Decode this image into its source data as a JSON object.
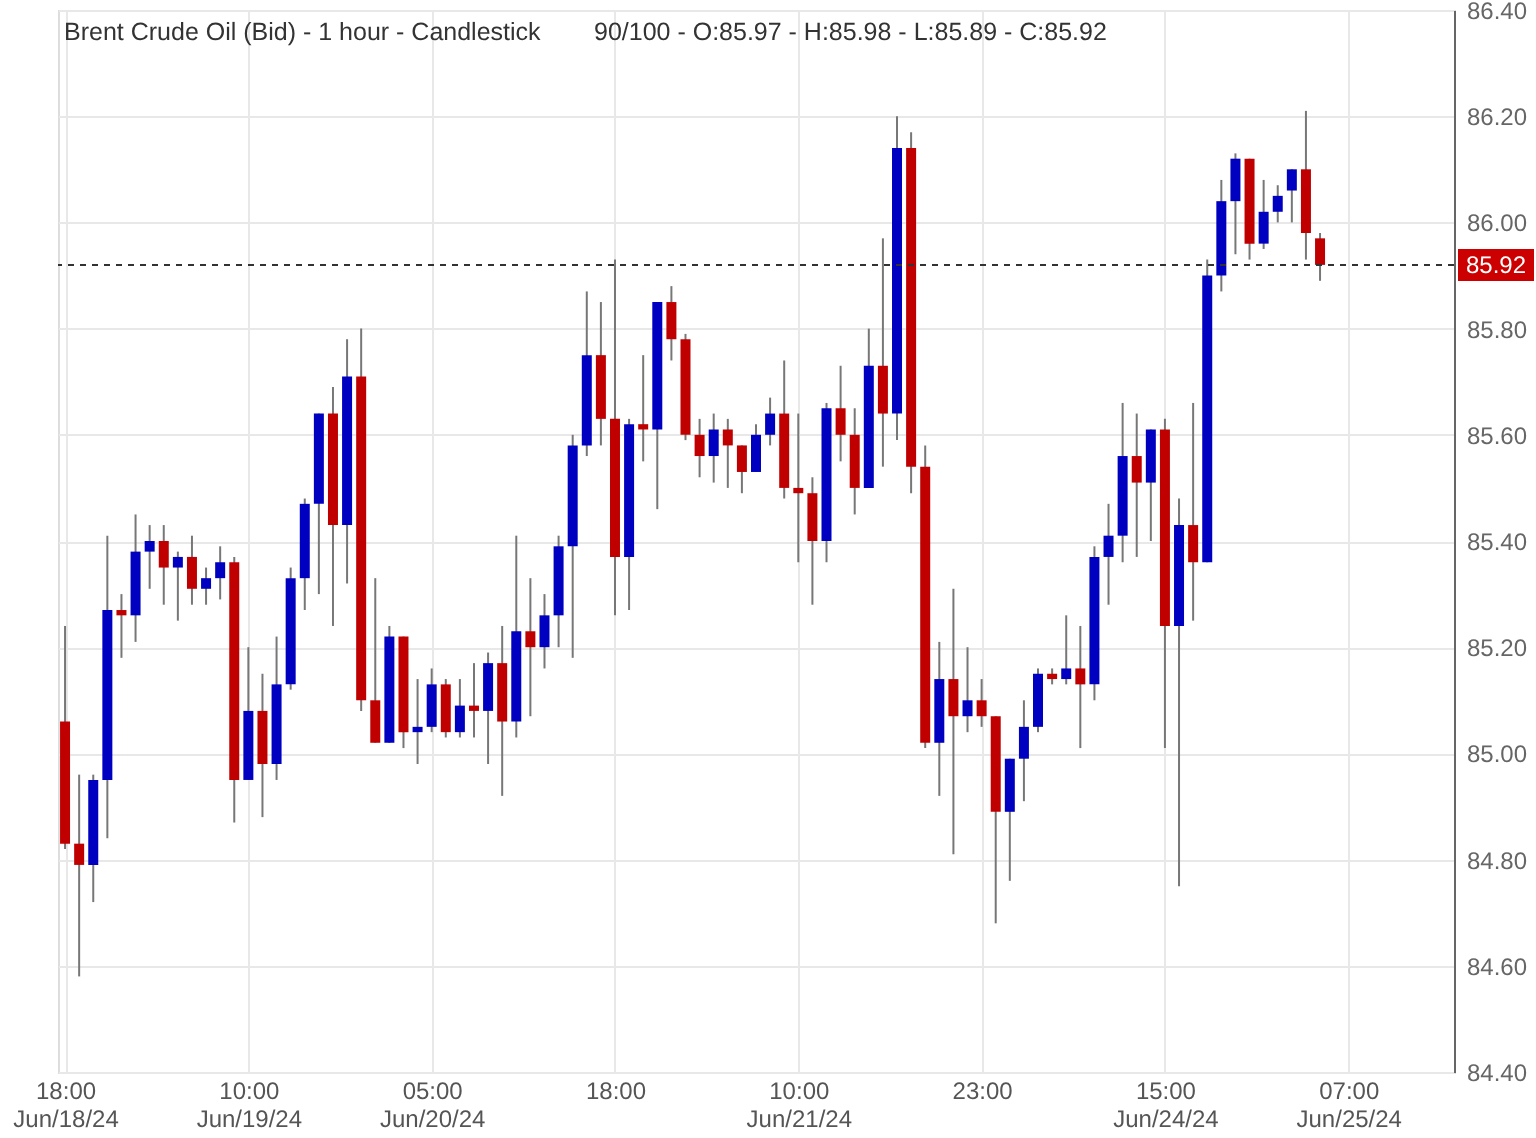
{
  "chart_data": {
    "type": "candlestick",
    "title": "Brent Crude Oil (Bid) - 1 hour - Candlestick",
    "subtitle": "90/100 - O:85.97 - H:85.98 - L:85.89 - C:85.92",
    "categories": [
      "18:00\nJun/18/24",
      null,
      null,
      null,
      null,
      null,
      null,
      null,
      null,
      null,
      null,
      null,
      null,
      "10:00\nJun/19/24",
      null,
      null,
      null,
      null,
      null,
      null,
      null,
      null,
      null,
      null,
      null,
      null,
      "05:00\nJun/20/24",
      null,
      null,
      null,
      null,
      null,
      null,
      null,
      null,
      null,
      null,
      null,
      null,
      "18:00",
      null,
      null,
      null,
      null,
      null,
      null,
      null,
      null,
      null,
      null,
      null,
      null,
      "10:00\nJun/21/24",
      null,
      null,
      null,
      null,
      null,
      null,
      null,
      null,
      null,
      null,
      null,
      null,
      "23:00",
      null,
      null,
      null,
      null,
      null,
      null,
      null,
      null,
      null,
      null,
      null,
      null,
      "15:00\nJun/24/24",
      null,
      null,
      null,
      null,
      null,
      null,
      null,
      null,
      null,
      null,
      null,
      null,
      "07:00\nJun/25/24",
      null,
      null,
      null,
      null,
      null,
      null,
      null
    ],
    "ohlc": [
      [
        85.06,
        85.24,
        84.82,
        84.83
      ],
      [
        84.83,
        84.96,
        84.58,
        84.79
      ],
      [
        84.79,
        84.96,
        84.72,
        84.95
      ],
      [
        84.95,
        85.41,
        84.84,
        85.27
      ],
      [
        85.27,
        85.3,
        85.18,
        85.26
      ],
      [
        85.26,
        85.45,
        85.21,
        85.38
      ],
      [
        85.38,
        85.43,
        85.31,
        85.4
      ],
      [
        85.4,
        85.43,
        85.28,
        85.35
      ],
      [
        85.35,
        85.38,
        85.25,
        85.37
      ],
      [
        85.37,
        85.41,
        85.28,
        85.31
      ],
      [
        85.31,
        85.35,
        85.28,
        85.33
      ],
      [
        85.33,
        85.39,
        85.29,
        85.36
      ],
      [
        85.36,
        85.37,
        84.87,
        84.95
      ],
      [
        84.95,
        85.2,
        84.95,
        85.08
      ],
      [
        85.08,
        85.15,
        84.88,
        84.98
      ],
      [
        84.98,
        85.22,
        84.95,
        85.13
      ],
      [
        85.13,
        85.35,
        85.12,
        85.33
      ],
      [
        85.33,
        85.48,
        85.27,
        85.47
      ],
      [
        85.47,
        85.64,
        85.3,
        85.64
      ],
      [
        85.64,
        85.69,
        85.24,
        85.43
      ],
      [
        85.43,
        85.78,
        85.32,
        85.71
      ],
      [
        85.71,
        85.8,
        85.08,
        85.1
      ],
      [
        85.1,
        85.33,
        85.02,
        85.02
      ],
      [
        85.02,
        85.24,
        85.02,
        85.22
      ],
      [
        85.22,
        85.22,
        85.01,
        85.04
      ],
      [
        85.04,
        85.14,
        84.98,
        85.05
      ],
      [
        85.05,
        85.16,
        85.04,
        85.13
      ],
      [
        85.13,
        85.14,
        85.03,
        85.04
      ],
      [
        85.04,
        85.14,
        85.03,
        85.09
      ],
      [
        85.09,
        85.17,
        85.03,
        85.08
      ],
      [
        85.08,
        85.19,
        84.98,
        85.17
      ],
      [
        85.17,
        85.24,
        84.92,
        85.06
      ],
      [
        85.06,
        85.41,
        85.03,
        85.23
      ],
      [
        85.23,
        85.33,
        85.07,
        85.2
      ],
      [
        85.2,
        85.3,
        85.16,
        85.26
      ],
      [
        85.26,
        85.41,
        85.2,
        85.39
      ],
      [
        85.39,
        85.6,
        85.18,
        85.58
      ],
      [
        85.58,
        85.87,
        85.56,
        85.75
      ],
      [
        85.75,
        85.85,
        85.58,
        85.63
      ],
      [
        85.63,
        85.93,
        85.26,
        85.37
      ],
      [
        85.37,
        85.63,
        85.27,
        85.62
      ],
      [
        85.62,
        85.75,
        85.55,
        85.61
      ],
      [
        85.61,
        85.85,
        85.46,
        85.85
      ],
      [
        85.85,
        85.88,
        85.74,
        85.78
      ],
      [
        85.78,
        85.79,
        85.59,
        85.6
      ],
      [
        85.6,
        85.63,
        85.52,
        85.56
      ],
      [
        85.56,
        85.64,
        85.51,
        85.61
      ],
      [
        85.61,
        85.63,
        85.5,
        85.58
      ],
      [
        85.58,
        85.58,
        85.49,
        85.53
      ],
      [
        85.53,
        85.62,
        85.53,
        85.6
      ],
      [
        85.6,
        85.67,
        85.58,
        85.64
      ],
      [
        85.64,
        85.74,
        85.48,
        85.5
      ],
      [
        85.5,
        85.64,
        85.36,
        85.49
      ],
      [
        85.49,
        85.52,
        85.28,
        85.4
      ],
      [
        85.4,
        85.66,
        85.36,
        85.65
      ],
      [
        85.65,
        85.73,
        85.55,
        85.6
      ],
      [
        85.6,
        85.65,
        85.45,
        85.5
      ],
      [
        85.5,
        85.8,
        85.5,
        85.73
      ],
      [
        85.73,
        85.97,
        85.54,
        85.64
      ],
      [
        85.64,
        86.2,
        85.59,
        86.14
      ],
      [
        86.14,
        86.17,
        85.49,
        85.54
      ],
      [
        85.54,
        85.58,
        85.01,
        85.02
      ],
      [
        85.02,
        85.21,
        84.92,
        85.14
      ],
      [
        85.14,
        85.31,
        84.81,
        85.07
      ],
      [
        85.07,
        85.2,
        85.04,
        85.1
      ],
      [
        85.1,
        85.14,
        85.05,
        85.07
      ],
      [
        85.07,
        85.07,
        84.68,
        84.89
      ],
      [
        84.89,
        84.99,
        84.76,
        84.99
      ],
      [
        84.99,
        85.1,
        84.91,
        85.05
      ],
      [
        85.05,
        85.16,
        85.04,
        85.15
      ],
      [
        85.15,
        85.16,
        85.13,
        85.14
      ],
      [
        85.14,
        85.26,
        85.13,
        85.16
      ],
      [
        85.16,
        85.24,
        85.01,
        85.13
      ],
      [
        85.13,
        85.39,
        85.1,
        85.37
      ],
      [
        85.37,
        85.47,
        85.28,
        85.41
      ],
      [
        85.41,
        85.66,
        85.36,
        85.56
      ],
      [
        85.56,
        85.64,
        85.37,
        85.51
      ],
      [
        85.51,
        85.61,
        85.4,
        85.61
      ],
      [
        85.61,
        85.63,
        85.01,
        85.24
      ],
      [
        85.24,
        85.48,
        84.75,
        85.43
      ],
      [
        85.43,
        85.66,
        85.25,
        85.36
      ],
      [
        85.36,
        85.93,
        85.36,
        85.9
      ],
      [
        85.9,
        86.08,
        85.87,
        86.04
      ],
      [
        86.04,
        86.13,
        85.94,
        86.12
      ],
      [
        86.12,
        86.12,
        85.93,
        85.96
      ],
      [
        85.96,
        86.08,
        85.95,
        86.02
      ],
      [
        86.02,
        86.07,
        86.0,
        86.05
      ],
      [
        86.06,
        86.1,
        86.0,
        86.1
      ],
      [
        86.1,
        86.21,
        85.93,
        85.98
      ],
      [
        85.97,
        85.98,
        85.89,
        85.92
      ],
      null,
      null,
      null,
      null,
      null,
      null,
      null,
      null,
      null
    ],
    "colors": [
      "#c00000",
      "#c00000",
      "#0000c0",
      "#0000c0",
      "#c00000",
      "#0000c0",
      "#0000c0",
      "#c00000",
      "#0000c0",
      "#c00000",
      "#0000c0",
      "#0000c0",
      "#c00000",
      "#0000c0",
      "#c00000",
      "#0000c0",
      "#0000c0",
      "#0000c0",
      "#0000c0",
      "#c00000",
      "#0000c0",
      "#c00000",
      "#c00000",
      "#0000c0",
      "#c00000",
      "#0000c0",
      "#0000c0",
      "#c00000",
      "#0000c0",
      "#c00000",
      "#0000c0",
      "#c00000",
      "#0000c0",
      "#c00000",
      "#0000c0",
      "#0000c0",
      "#0000c0",
      "#0000c0",
      "#c00000",
      "#c00000",
      "#0000c0",
      "#c00000",
      "#0000c0",
      "#c00000",
      "#c00000",
      "#c00000",
      "#0000c0",
      "#c00000",
      "#c00000",
      "#0000c0",
      "#0000c0",
      "#c00000",
      "#c00000",
      "#c00000",
      "#0000c0",
      "#c00000",
      "#c00000",
      "#0000c0",
      "#c00000",
      "#0000c0",
      "#c00000",
      "#c00000",
      "#0000c0",
      "#c00000",
      "#0000c0",
      "#c00000",
      "#c00000",
      "#0000c0",
      "#0000c0",
      "#0000c0",
      "#c00000",
      "#0000c0",
      "#c00000",
      "#0000c0",
      "#0000c0",
      "#0000c0",
      "#c00000",
      "#0000c0",
      "#c00000",
      "#0000c0",
      "#c00000",
      "#0000c0",
      "#0000c0",
      "#0000c0",
      "#c00000",
      "#0000c0",
      "#0000c0",
      "#0000c0",
      "#c00000",
      "#c00000",
      null,
      null,
      null,
      null,
      null,
      null,
      null,
      null,
      null
    ],
    "ylim": [
      84.4,
      86.4
    ],
    "yticks": [
      {
        "value": 84.4,
        "label": "84.40"
      },
      {
        "value": 84.6,
        "label": "84.60"
      },
      {
        "value": 84.8,
        "label": "84.80"
      },
      {
        "value": 85.0,
        "label": "85.00"
      },
      {
        "value": 85.2,
        "label": "85.20"
      },
      {
        "value": 85.4,
        "label": "85.40"
      },
      {
        "value": 85.6,
        "label": "85.60"
      },
      {
        "value": 85.8,
        "label": "85.80"
      },
      {
        "value": 86.0,
        "label": "86.00"
      },
      {
        "value": 86.2,
        "label": "86.20"
      },
      {
        "value": 86.4,
        "label": "86.40"
      }
    ],
    "ref_lines": [
      {
        "axis": "y",
        "value": 85.92,
        "label": "85.92",
        "color": "#333333",
        "line_style": "dashed"
      }
    ],
    "grid": true
  }
}
